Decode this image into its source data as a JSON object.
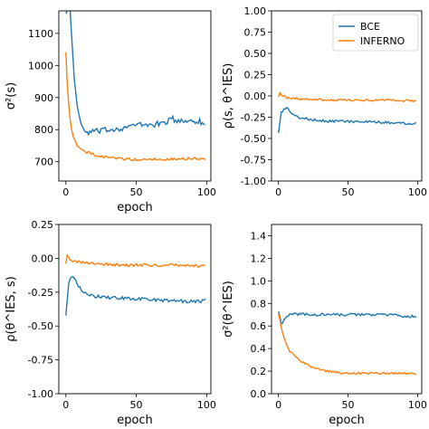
{
  "colors": {
    "bce": "#1f77b4",
    "inferno": "#ff7f0e"
  },
  "legend": {
    "placement": "top-right",
    "entries": [
      "BCE",
      "INFERNO"
    ]
  },
  "chart_data": [
    {
      "type": "line",
      "xlabel": "epoch",
      "ylabel": "σ²(s)",
      "xlim": [
        -5,
        103
      ],
      "ylim": [
        640,
        1170
      ],
      "xticks": [
        0,
        50,
        100
      ],
      "yticks": [
        700,
        800,
        900,
        1000,
        1100
      ],
      "series": [
        {
          "name": "BCE",
          "color": "#1f77b4",
          "key_points": [
            [
              1,
              1170
            ],
            [
              3,
              1170
            ],
            [
              5,
              1020
            ],
            [
              7,
              910
            ],
            [
              9,
              850
            ],
            [
              12,
              800
            ],
            [
              15,
              790
            ],
            [
              20,
              795
            ],
            [
              25,
              795
            ],
            [
              30,
              800
            ],
            [
              40,
              805
            ],
            [
              50,
              815
            ],
            [
              60,
              815
            ],
            [
              70,
              820
            ],
            [
              75,
              835
            ],
            [
              80,
              825
            ],
            [
              90,
              830
            ],
            [
              95,
              825
            ],
            [
              99,
              818
            ]
          ],
          "noise": 9
        },
        {
          "name": "INFERNO",
          "color": "#ff7f0e",
          "key_points": [
            [
              0,
              1045
            ],
            [
              1,
              940
            ],
            [
              3,
              830
            ],
            [
              5,
              780
            ],
            [
              8,
              750
            ],
            [
              12,
              735
            ],
            [
              16,
              728
            ],
            [
              20,
              722
            ],
            [
              30,
              712
            ],
            [
              40,
              710
            ],
            [
              50,
              706
            ],
            [
              60,
              708
            ],
            [
              70,
              708
            ],
            [
              80,
              710
            ],
            [
              90,
              710
            ],
            [
              99,
              708
            ]
          ],
          "noise": 4
        }
      ]
    },
    {
      "type": "line",
      "xlabel": "",
      "ylabel": "ρ(s, θ^IES)",
      "xlim": [
        -5,
        103
      ],
      "ylim": [
        -1.0,
        1.0
      ],
      "xticks": [
        0,
        50,
        100
      ],
      "yticks": [
        -1.0,
        -0.75,
        -0.5,
        -0.25,
        0.0,
        0.25,
        0.5,
        0.75,
        1.0
      ],
      "series": [
        {
          "name": "BCE",
          "color": "#1f77b4",
          "key_points": [
            [
              0,
              -0.42
            ],
            [
              2,
              -0.2
            ],
            [
              4,
              -0.15
            ],
            [
              6,
              -0.14
            ],
            [
              8,
              -0.17
            ],
            [
              10,
              -0.22
            ],
            [
              14,
              -0.25
            ],
            [
              20,
              -0.27
            ],
            [
              30,
              -0.29
            ],
            [
              50,
              -0.3
            ],
            [
              70,
              -0.31
            ],
            [
              90,
              -0.32
            ],
            [
              99,
              -0.32
            ]
          ],
          "noise": 0.015
        },
        {
          "name": "INFERNO",
          "color": "#ff7f0e",
          "key_points": [
            [
              0,
              0.0
            ],
            [
              1,
              0.04
            ],
            [
              3,
              0.0
            ],
            [
              6,
              -0.02
            ],
            [
              10,
              -0.03
            ],
            [
              20,
              -0.04
            ],
            [
              40,
              -0.05
            ],
            [
              60,
              -0.05
            ],
            [
              80,
              -0.05
            ],
            [
              99,
              -0.06
            ]
          ],
          "noise": 0.012
        }
      ]
    },
    {
      "type": "line",
      "xlabel": "epoch",
      "ylabel": "ρ(θ^IES, s)",
      "xlim": [
        -5,
        103
      ],
      "ylim": [
        -1.0,
        0.25
      ],
      "xticks": [
        0,
        50,
        100
      ],
      "yticks": [
        -1.0,
        -0.75,
        -0.5,
        -0.25,
        0.0,
        0.25
      ],
      "series": [
        {
          "name": "BCE",
          "color": "#1f77b4",
          "key_points": [
            [
              0,
              -0.41
            ],
            [
              2,
              -0.18
            ],
            [
              4,
              -0.13
            ],
            [
              6,
              -0.14
            ],
            [
              8,
              -0.18
            ],
            [
              10,
              -0.22
            ],
            [
              14,
              -0.26
            ],
            [
              20,
              -0.28
            ],
            [
              30,
              -0.29
            ],
            [
              50,
              -0.3
            ],
            [
              70,
              -0.31
            ],
            [
              90,
              -0.32
            ],
            [
              99,
              -0.31
            ]
          ],
          "noise": 0.012
        },
        {
          "name": "INFERNO",
          "color": "#ff7f0e",
          "key_points": [
            [
              0,
              -0.03
            ],
            [
              1,
              0.03
            ],
            [
              3,
              -0.02
            ],
            [
              6,
              -0.02
            ],
            [
              10,
              -0.03
            ],
            [
              20,
              -0.04
            ],
            [
              40,
              -0.05
            ],
            [
              60,
              -0.05
            ],
            [
              80,
              -0.05
            ],
            [
              99,
              -0.06
            ]
          ],
          "noise": 0.01
        }
      ]
    },
    {
      "type": "line",
      "xlabel": "epoch",
      "ylabel": "σ²(θ^IES)",
      "xlim": [
        -5,
        103
      ],
      "ylim": [
        0.0,
        1.5
      ],
      "xticks": [
        0,
        50,
        100
      ],
      "yticks": [
        0.0,
        0.2,
        0.4,
        0.6,
        0.8,
        1.0,
        1.2,
        1.4
      ],
      "series": [
        {
          "name": "BCE",
          "color": "#1f77b4",
          "key_points": [
            [
              0,
              0.74
            ],
            [
              2,
              0.62
            ],
            [
              4,
              0.65
            ],
            [
              6,
              0.68
            ],
            [
              10,
              0.71
            ],
            [
              20,
              0.7
            ],
            [
              40,
              0.7
            ],
            [
              60,
              0.7
            ],
            [
              80,
              0.7
            ],
            [
              99,
              0.68
            ]
          ],
          "noise": 0.012
        },
        {
          "name": "INFERNO",
          "color": "#ff7f0e",
          "key_points": [
            [
              0,
              0.72
            ],
            [
              2,
              0.58
            ],
            [
              5,
              0.46
            ],
            [
              8,
              0.38
            ],
            [
              12,
              0.33
            ],
            [
              16,
              0.29
            ],
            [
              20,
              0.26
            ],
            [
              25,
              0.23
            ],
            [
              30,
              0.21
            ],
            [
              40,
              0.19
            ],
            [
              50,
              0.18
            ],
            [
              70,
              0.18
            ],
            [
              90,
              0.18
            ],
            [
              99,
              0.18
            ]
          ],
          "noise": 0.008
        }
      ]
    }
  ]
}
